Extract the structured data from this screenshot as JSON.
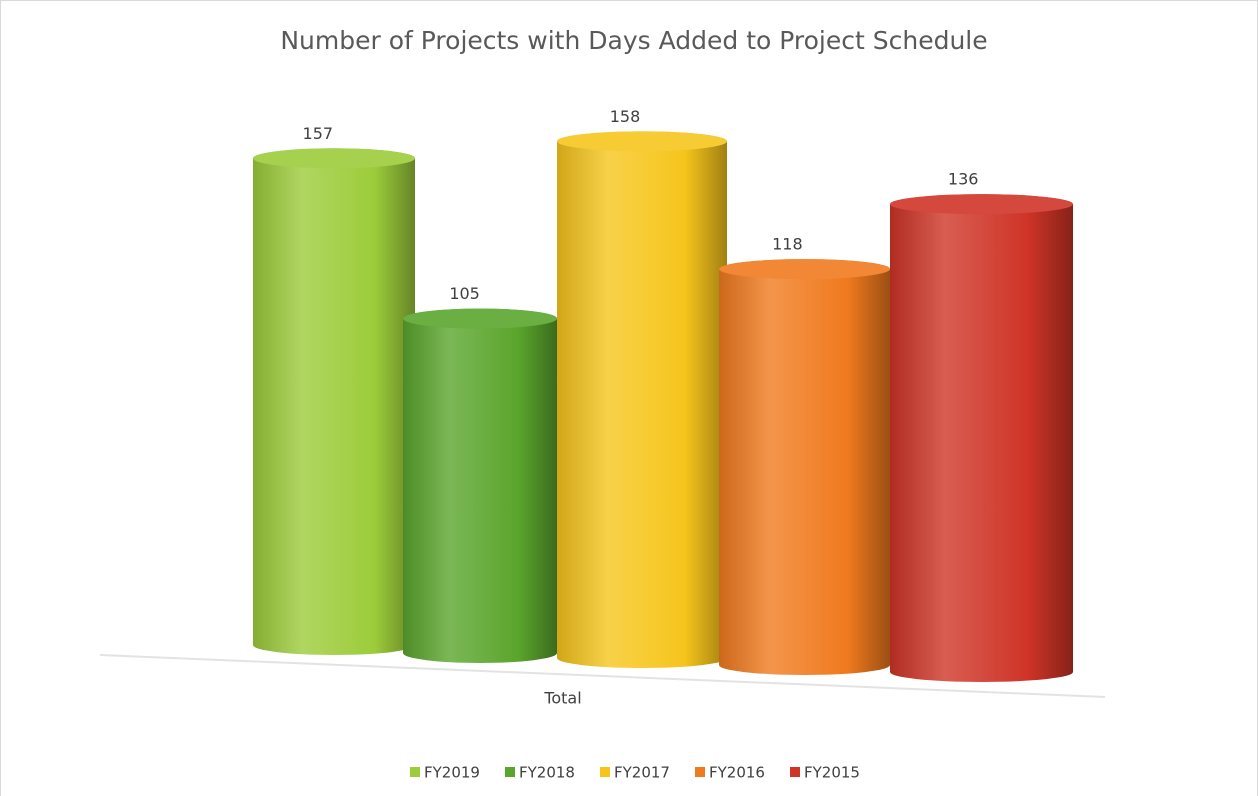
{
  "chart_data": {
    "type": "cylinder",
    "title": "Number of Projects with Days Added to Project Schedule",
    "categories": [
      "Total"
    ],
    "series": [
      {
        "name": "FY2019",
        "color": "#9ccc3a",
        "values": [
          157
        ]
      },
      {
        "name": "FY2018",
        "color": "#5aa52c",
        "values": [
          105
        ]
      },
      {
        "name": "FY2017",
        "color": "#f6c51c",
        "values": [
          158
        ]
      },
      {
        "name": "FY2016",
        "color": "#f07a1e",
        "values": [
          118
        ]
      },
      {
        "name": "FY2015",
        "color": "#cf3427",
        "values": [
          136
        ]
      }
    ],
    "legend": "bottom"
  }
}
